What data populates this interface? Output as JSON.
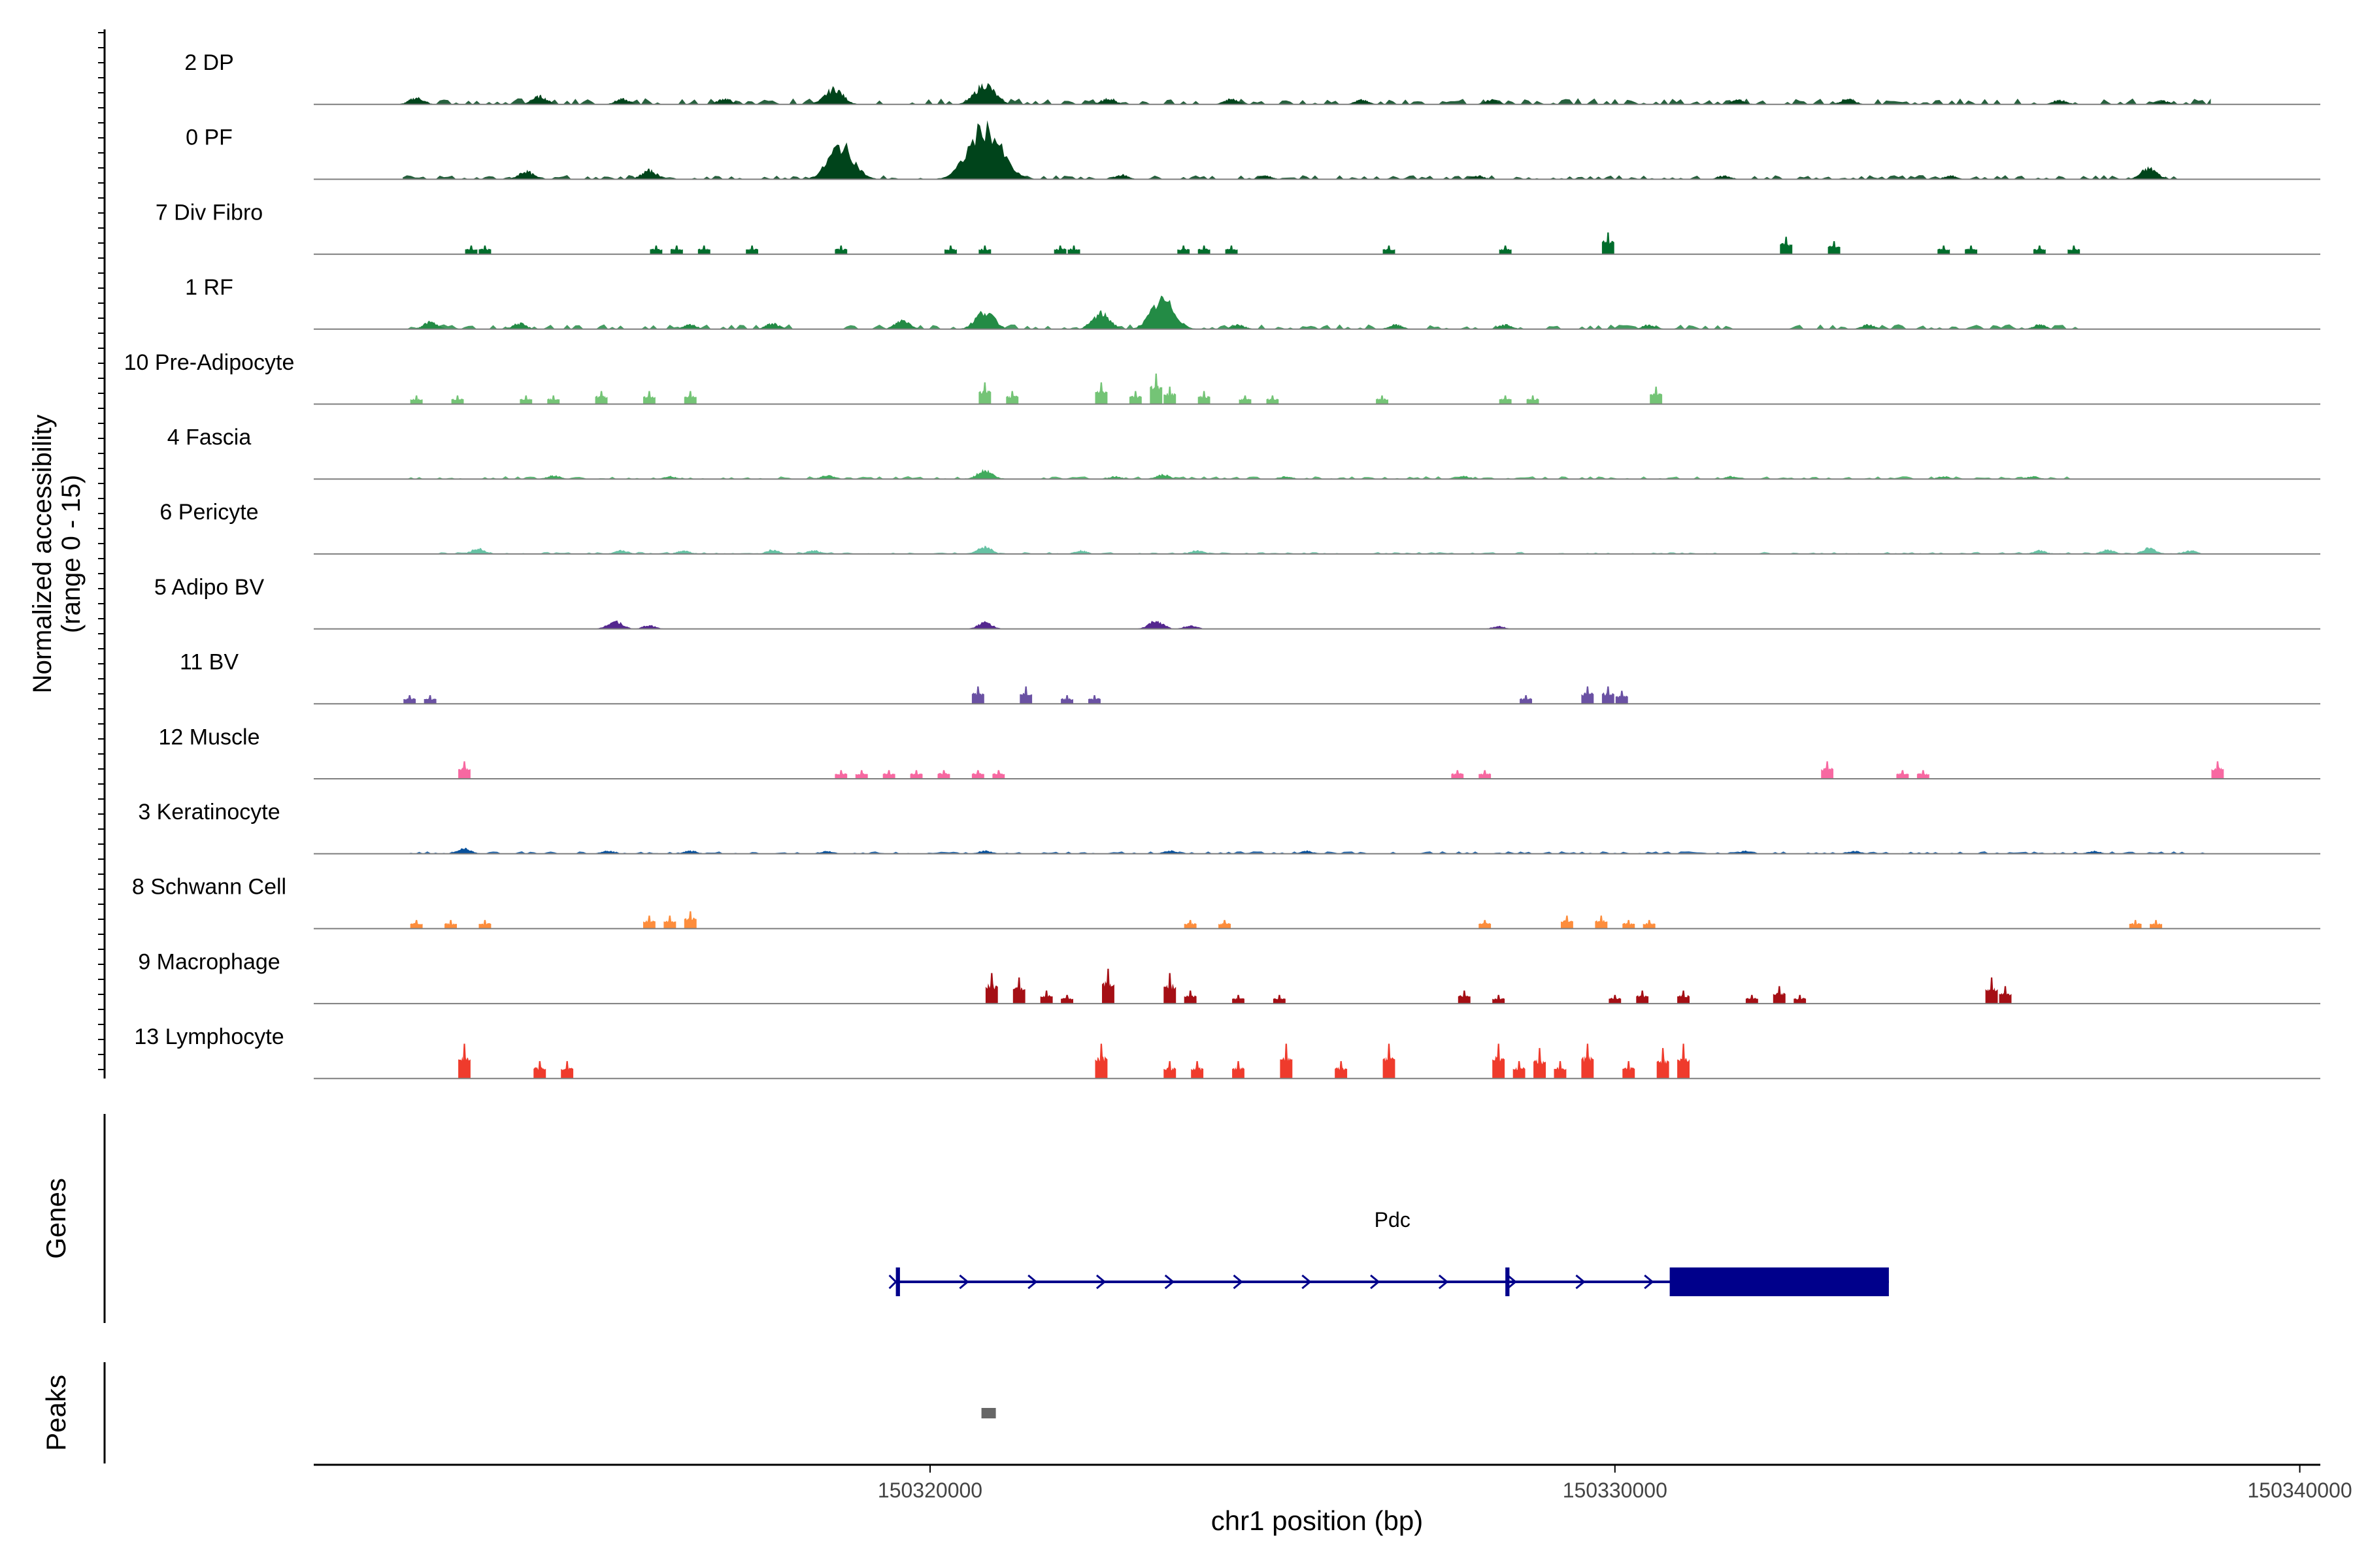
{
  "chart_data": {
    "type": "area",
    "title": "",
    "ylabel": "Normalized accessibility",
    "ylabel_sub": "(range 0 - 15)",
    "xlabel": "chr1 position (bp)",
    "x_range": [
      150311000,
      150340300
    ],
    "y_range": [
      0,
      15
    ],
    "x_ticks": [
      {
        "value": 150320000,
        "label": "150320000"
      },
      {
        "value": 150330000,
        "label": "150330000"
      },
      {
        "value": 150340000,
        "label": "150340000"
      }
    ],
    "tracks": [
      {
        "name": "2 DP",
        "color": "#00441b",
        "style": "smooth",
        "base": 0.9,
        "noise": [
          150312300,
          150338700
        ],
        "peaks": [
          [
            150312500,
            1.5
          ],
          [
            150314300,
            1.8
          ],
          [
            150315500,
            1.2
          ],
          [
            150317000,
            1.3
          ],
          [
            150318600,
            3.5
          ],
          [
            150320800,
            4.5
          ],
          [
            150322600,
            1.3
          ],
          [
            150324400,
            1.2
          ],
          [
            150326300,
            1.0
          ],
          [
            150328200,
            1.0
          ],
          [
            150331800,
            1.0
          ],
          [
            150333400,
            1.3
          ],
          [
            150336500,
            1.0
          ],
          [
            150338000,
            0.8
          ]
        ]
      },
      {
        "name": "0 PF",
        "color": "#00441b",
        "style": "smooth",
        "base": 0.6,
        "noise": [
          150312300,
          150338400
        ],
        "peaks": [
          [
            150314100,
            1.8
          ],
          [
            150315900,
            2.0
          ],
          [
            150318700,
            7.5
          ],
          [
            150320800,
            11.5
          ],
          [
            150322800,
            1.0
          ],
          [
            150324900,
            0.8
          ],
          [
            150328000,
            0.8
          ],
          [
            150331600,
            0.8
          ],
          [
            150334900,
            0.8
          ],
          [
            150337800,
            2.5
          ]
        ]
      },
      {
        "name": "7 Div Fibro",
        "color": "#006d2c",
        "style": "blocks",
        "base": 0,
        "noise": null,
        "peaks": [
          [
            150313300,
            2
          ],
          [
            150313500,
            2
          ],
          [
            150316000,
            2
          ],
          [
            150316300,
            2
          ],
          [
            150316700,
            2
          ],
          [
            150317400,
            2
          ],
          [
            150318700,
            2
          ],
          [
            150320300,
            2
          ],
          [
            150320800,
            2
          ],
          [
            150321900,
            2
          ],
          [
            150322100,
            2
          ],
          [
            150323700,
            2
          ],
          [
            150324000,
            2
          ],
          [
            150324400,
            2
          ],
          [
            150326700,
            2
          ],
          [
            150328400,
            2
          ],
          [
            150329900,
            5
          ],
          [
            150332500,
            4
          ],
          [
            150333200,
            3
          ],
          [
            150334800,
            2
          ],
          [
            150335200,
            2
          ],
          [
            150336200,
            2
          ],
          [
            150336700,
            2
          ]
        ]
      },
      {
        "name": "1 RF",
        "color": "#238b45",
        "style": "smooth",
        "base": 0.7,
        "noise": [
          150312300,
          150336800
        ],
        "peaks": [
          [
            150312700,
            1.6
          ],
          [
            150314000,
            1.3
          ],
          [
            150316500,
            1.0
          ],
          [
            150317700,
            1.3
          ],
          [
            150319600,
            2.0
          ],
          [
            150320800,
            4.0
          ],
          [
            150322500,
            3.5
          ],
          [
            150323400,
            6.5
          ],
          [
            150324500,
            1.0
          ],
          [
            150326800,
            1.0
          ],
          [
            150328400,
            1.0
          ],
          [
            150330500,
            1.0
          ],
          [
            150333700,
            1.0
          ],
          [
            150336200,
            1.0
          ]
        ]
      },
      {
        "name": "10 Pre-Adipocyte",
        "color": "#74c476",
        "style": "blocks",
        "base": 0,
        "noise": null,
        "peaks": [
          [
            150312500,
            2
          ],
          [
            150313100,
            2
          ],
          [
            150314100,
            2
          ],
          [
            150314500,
            2
          ],
          [
            150315200,
            3
          ],
          [
            150315900,
            3
          ],
          [
            150316500,
            3
          ],
          [
            150320800,
            5
          ],
          [
            150321200,
            3
          ],
          [
            150322500,
            5
          ],
          [
            150323000,
            3
          ],
          [
            150323300,
            7
          ],
          [
            150323500,
            4
          ],
          [
            150324000,
            3
          ],
          [
            150324600,
            2
          ],
          [
            150325000,
            2
          ],
          [
            150326600,
            2
          ],
          [
            150328400,
            2
          ],
          [
            150328800,
            2
          ],
          [
            150330600,
            4
          ]
        ]
      },
      {
        "name": "4 Fascia",
        "color": "#41ab5d",
        "style": "smooth",
        "base": 0.4,
        "noise": [
          150312300,
          150336800
        ],
        "peaks": [
          [
            150314500,
            0.8
          ],
          [
            150316200,
            0.6
          ],
          [
            150318500,
            0.8
          ],
          [
            150320800,
            2.0
          ],
          [
            150322700,
            0.6
          ],
          [
            150323400,
            1.0
          ],
          [
            150325200,
            0.6
          ],
          [
            150327800,
            0.6
          ],
          [
            150331700,
            0.6
          ],
          [
            150334800,
            0.6
          ],
          [
            150336100,
            0.6
          ]
        ]
      },
      {
        "name": "6 Pericyte",
        "color": "#66c2a4",
        "style": "smooth",
        "base": 0.3,
        "noise": [
          150312800,
          150338500
        ],
        "peaks": [
          [
            150313400,
            1.2
          ],
          [
            150315500,
            0.8
          ],
          [
            150316400,
            0.8
          ],
          [
            150317700,
            0.9
          ],
          [
            150318300,
            0.8
          ],
          [
            150320800,
            1.6
          ],
          [
            150322200,
            0.8
          ],
          [
            150323900,
            0.8
          ],
          [
            150336200,
            0.8
          ],
          [
            150337200,
            1.0
          ],
          [
            150337800,
            1.3
          ],
          [
            150338400,
            0.8
          ]
        ]
      },
      {
        "name": "5 Adipo BV",
        "color": "#54278f",
        "style": "smooth",
        "base": 0,
        "noise": null,
        "peaks": [
          [
            150315400,
            1.8
          ],
          [
            150315900,
            0.8
          ],
          [
            150320800,
            1.5
          ],
          [
            150323300,
            1.8
          ],
          [
            150323800,
            0.8
          ],
          [
            150328300,
            0.6
          ]
        ]
      },
      {
        "name": "11 BV",
        "color": "#6a51a3",
        "style": "blocks",
        "base": 0,
        "noise": null,
        "peaks": [
          [
            150312400,
            2
          ],
          [
            150312700,
            2
          ],
          [
            150320700,
            4
          ],
          [
            150321400,
            4
          ],
          [
            150322000,
            2
          ],
          [
            150322400,
            2
          ],
          [
            150328700,
            2
          ],
          [
            150329600,
            4
          ],
          [
            150329900,
            4
          ],
          [
            150330100,
            3
          ]
        ]
      },
      {
        "name": "12 Muscle",
        "color": "#f768a1",
        "style": "blocks",
        "base": 0,
        "noise": null,
        "peaks": [
          [
            150313200,
            4
          ],
          [
            150318700,
            2
          ],
          [
            150319000,
            2
          ],
          [
            150319400,
            2
          ],
          [
            150319800,
            2
          ],
          [
            150320200,
            2
          ],
          [
            150320700,
            2
          ],
          [
            150321000,
            2
          ],
          [
            150327700,
            2
          ],
          [
            150328100,
            2
          ],
          [
            150333100,
            4
          ],
          [
            150334200,
            2
          ],
          [
            150334500,
            2
          ],
          [
            150338800,
            4
          ]
        ]
      },
      {
        "name": "3 Keratinocyte",
        "color": "#08519c",
        "style": "smooth",
        "base": 0.35,
        "noise": [
          150312300,
          150338700
        ],
        "peaks": [
          [
            150313200,
            1.2
          ],
          [
            150315300,
            0.7
          ],
          [
            150316500,
            0.7
          ],
          [
            150318500,
            0.6
          ],
          [
            150320800,
            0.7
          ],
          [
            150323500,
            0.7
          ],
          [
            150325500,
            0.6
          ],
          [
            150331900,
            0.6
          ],
          [
            150333500,
            0.6
          ],
          [
            150337000,
            0.6
          ]
        ]
      },
      {
        "name": "8 Schwann Cell",
        "color": "#fd8d3c",
        "style": "blocks",
        "base": 0,
        "noise": null,
        "peaks": [
          [
            150312500,
            2
          ],
          [
            150313000,
            2
          ],
          [
            150313500,
            2
          ],
          [
            150315900,
            3
          ],
          [
            150316200,
            3
          ],
          [
            150316500,
            4
          ],
          [
            150323800,
            2
          ],
          [
            150324300,
            2
          ],
          [
            150328100,
            2
          ],
          [
            150329300,
            3
          ],
          [
            150329800,
            3
          ],
          [
            150330200,
            2
          ],
          [
            150330500,
            2
          ],
          [
            150337600,
            2
          ],
          [
            150337900,
            2
          ]
        ]
      },
      {
        "name": "9 Macrophage",
        "color": "#a50f15",
        "style": "blocks",
        "base": 0,
        "noise": null,
        "peaks": [
          [
            150320900,
            7
          ],
          [
            150321300,
            6
          ],
          [
            150321700,
            3
          ],
          [
            150322000,
            2
          ],
          [
            150322600,
            8
          ],
          [
            150323500,
            7
          ],
          [
            150323800,
            3
          ],
          [
            150324500,
            2
          ],
          [
            150325100,
            2
          ],
          [
            150327800,
            3
          ],
          [
            150328300,
            2
          ],
          [
            150330000,
            2
          ],
          [
            150330400,
            3
          ],
          [
            150331000,
            3
          ],
          [
            150332000,
            2
          ],
          [
            150332400,
            4
          ],
          [
            150332700,
            2
          ],
          [
            150335500,
            6
          ],
          [
            150335700,
            4
          ]
        ]
      },
      {
        "name": "13 Lymphocyte",
        "color": "#ef3b2c",
        "style": "blocks",
        "base": 0,
        "noise": null,
        "peaks": [
          [
            150313200,
            8
          ],
          [
            150314300,
            4
          ],
          [
            150314700,
            4
          ],
          [
            150322500,
            8
          ],
          [
            150323500,
            4
          ],
          [
            150323900,
            4
          ],
          [
            150324500,
            4
          ],
          [
            150325200,
            8
          ],
          [
            150326000,
            4
          ],
          [
            150326700,
            8
          ],
          [
            150328300,
            8
          ],
          [
            150328600,
            4
          ],
          [
            150328900,
            7
          ],
          [
            150329200,
            4
          ],
          [
            150329600,
            8
          ],
          [
            150330200,
            4
          ],
          [
            150330700,
            7
          ],
          [
            150331000,
            8
          ]
        ]
      }
    ],
    "gene": {
      "name": "Pdc",
      "color": "#00008b",
      "start": 150319500,
      "end": 150334000,
      "exons": [
        [
          150319500,
          150319560
        ],
        [
          150328400,
          150328460
        ],
        [
          150330800,
          150334000
        ]
      ],
      "strand": "+"
    },
    "peaks_track": {
      "color": "#666666",
      "regions": [
        [
          150320750,
          150320950
        ]
      ]
    },
    "panel_labels": {
      "genes": "Genes",
      "peaks": "Peaks"
    }
  }
}
